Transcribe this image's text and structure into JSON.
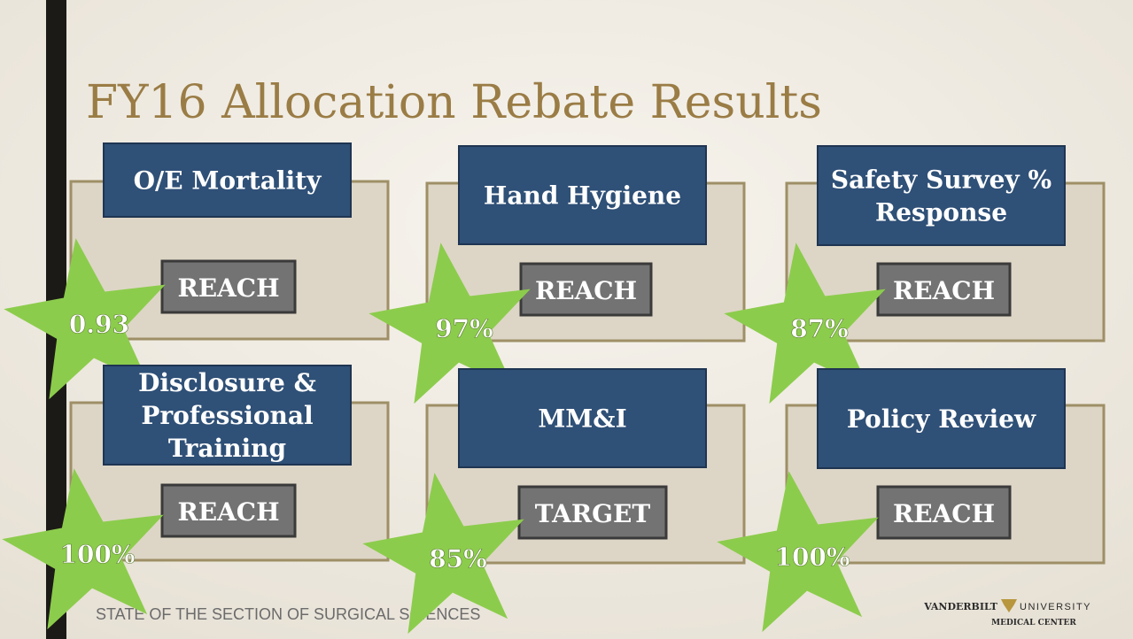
{
  "title": "FY16 Allocation Rebate Results",
  "cards": [
    {
      "label": [
        "O/E Mortality"
      ],
      "status": "REACH",
      "score": "0.93"
    },
    {
      "label": [
        "Hand Hygiene"
      ],
      "status": "REACH",
      "score": "97%"
    },
    {
      "label": [
        "Safety Survey %",
        "Response"
      ],
      "status": "REACH",
      "score": "87%"
    },
    {
      "label": [
        "Disclosure &",
        "Professional",
        "Training"
      ],
      "status": "REACH",
      "score": "100%"
    },
    {
      "label": [
        "MM&I"
      ],
      "status": "TARGET",
      "score": "85%"
    },
    {
      "label": [
        "Policy Review"
      ],
      "status": "REACH",
      "score": "100%"
    }
  ],
  "footer": "STATE OF THE SECTION OF SURGICAL SCIENCES",
  "logo": {
    "left": "VANDERBILT",
    "right": "UNIVERSITY",
    "sub": "MEDICAL CENTER"
  }
}
